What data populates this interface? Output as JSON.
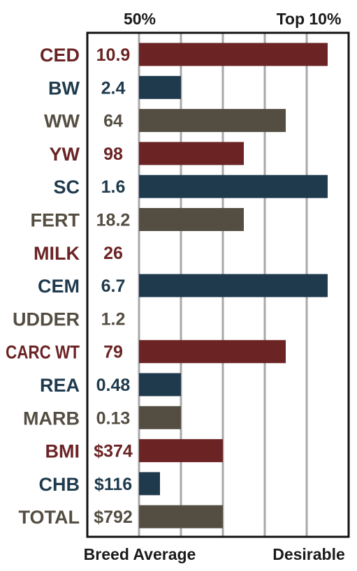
{
  "chart_data": {
    "type": "bar",
    "orientation": "horizontal",
    "top_labels": {
      "left": "50%",
      "right": "Top 10%"
    },
    "bottom_labels": {
      "left": "Breed Average",
      "right": "Desirable"
    },
    "grid": true,
    "scale_max": 100,
    "gridlines": [
      20,
      40,
      60,
      80
    ],
    "colors": {
      "red": "#6b2324",
      "blue": "#1f3a4d",
      "gray": "#544d42"
    },
    "rows": [
      {
        "trait": "CED",
        "value_label": "10.9",
        "bar": 90,
        "color": "red"
      },
      {
        "trait": "BW",
        "value_label": "2.4",
        "bar": 20,
        "color": "blue"
      },
      {
        "trait": "WW",
        "value_label": "64",
        "bar": 70,
        "color": "gray"
      },
      {
        "trait": "YW",
        "value_label": "98",
        "bar": 50,
        "color": "red"
      },
      {
        "trait": "SC",
        "value_label": "1.6",
        "bar": 90,
        "color": "blue"
      },
      {
        "trait": "FERT",
        "value_label": "18.2",
        "bar": 50,
        "color": "gray"
      },
      {
        "trait": "MILK",
        "value_label": "26",
        "bar": 0,
        "color": "red"
      },
      {
        "trait": "CEM",
        "value_label": "6.7",
        "bar": 90,
        "color": "blue"
      },
      {
        "trait": "UDDER",
        "value_label": "1.2",
        "bar": 0,
        "color": "gray"
      },
      {
        "trait": "CARC WT",
        "value_label": "79",
        "bar": 70,
        "color": "red"
      },
      {
        "trait": "REA",
        "value_label": "0.48",
        "bar": 20,
        "color": "blue"
      },
      {
        "trait": "MARB",
        "value_label": "0.13",
        "bar": 20,
        "color": "gray"
      },
      {
        "trait": "BMI",
        "value_label": "$374",
        "bar": 40,
        "color": "red"
      },
      {
        "trait": "CHB",
        "value_label": "$116",
        "bar": 10,
        "color": "blue"
      },
      {
        "trait": "TOTAL",
        "value_label": "$792",
        "bar": 40,
        "color": "gray"
      }
    ]
  }
}
